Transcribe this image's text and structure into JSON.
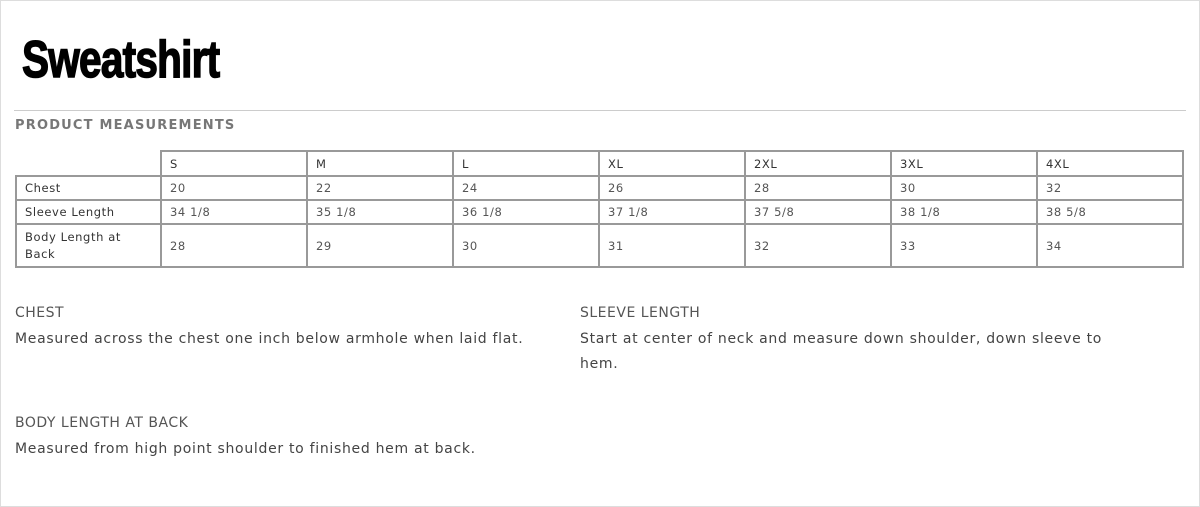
{
  "title": "Sweatshirt",
  "section_title": "PRODUCT MEASUREMENTS",
  "table": {
    "sizes": [
      "S",
      "M",
      "L",
      "XL",
      "2XL",
      "3XL",
      "4XL"
    ],
    "rows": [
      {
        "label": "Chest",
        "values": [
          "20",
          "22",
          "24",
          "26",
          "28",
          "30",
          "32"
        ]
      },
      {
        "label": "Sleeve Length",
        "values": [
          "34 1/8",
          "35 1/8",
          "36  1/8",
          "37 1/8",
          "37 5/8",
          "38  1/8",
          "38  5/8"
        ]
      },
      {
        "label": "Body Length at Back",
        "values": [
          "28",
          "29",
          "30",
          "31",
          "32",
          "33",
          "34"
        ]
      }
    ]
  },
  "descriptions": {
    "chest": {
      "heading": "CHEST",
      "text": "Measured across the chest one inch below armhole when laid flat."
    },
    "sleeve": {
      "heading": "SLEEVE LENGTH",
      "text": "Start at center of neck and measure down shoulder, down sleeve to hem."
    },
    "body": {
      "heading": "BODY LENGTH AT BACK",
      "text": "Measured from high point shoulder to finished hem at back."
    }
  }
}
